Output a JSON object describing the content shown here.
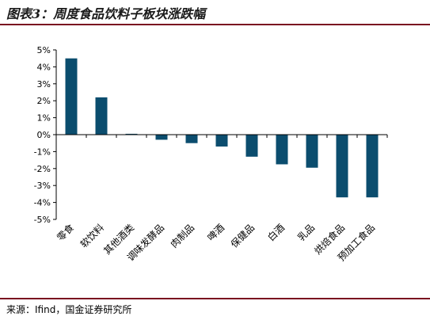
{
  "title": "图表3：周度食品饮料子板块涨跌幅",
  "source": "来源：Ifind，国金证券研究所",
  "colors": {
    "bar": "#0b4d6e",
    "rule": "#7a1020",
    "axis": "#000000"
  },
  "chart_data": {
    "type": "bar",
    "categories": [
      "零食",
      "软饮料",
      "其他酒类",
      "调味发酵品",
      "肉制品",
      "啤酒",
      "保健品",
      "白酒",
      "乳品",
      "烘焙食品",
      "预加工食品"
    ],
    "values": [
      4.5,
      2.2,
      0.05,
      -0.3,
      -0.5,
      -0.7,
      -1.3,
      -1.75,
      -1.95,
      -3.7,
      -3.7
    ],
    "ylim": [
      -5,
      5
    ],
    "yticks": [
      "5%",
      "4%",
      "3%",
      "2%",
      "1%",
      "0%",
      "-1%",
      "-2%",
      "-3%",
      "-4%",
      "-5%"
    ],
    "ytick_values": [
      5,
      4,
      3,
      2,
      1,
      0,
      -1,
      -2,
      -3,
      -4,
      -5
    ],
    "grid": false,
    "xlabel": "",
    "ylabel": ""
  }
}
